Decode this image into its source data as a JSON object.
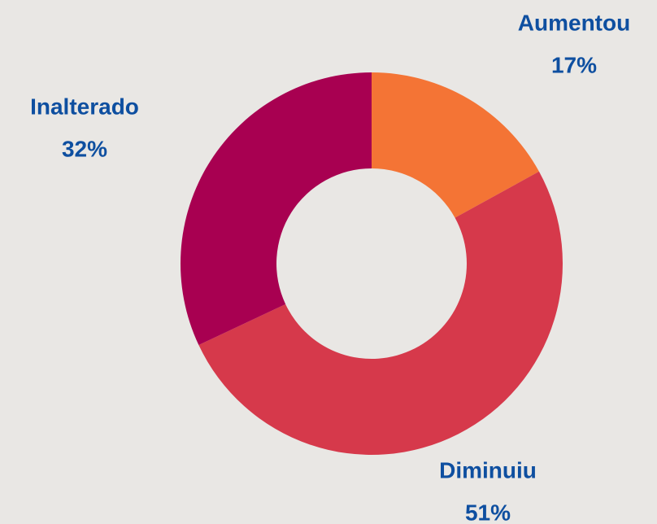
{
  "chart_data": {
    "type": "donut",
    "categories": [
      "Aumentou",
      "Diminuiu",
      "Inalterado"
    ],
    "values": [
      17,
      51,
      32
    ],
    "value_labels": [
      "17%",
      "51%",
      "32%"
    ],
    "colors": [
      "#f47435",
      "#d6394b",
      "#a80051"
    ]
  }
}
